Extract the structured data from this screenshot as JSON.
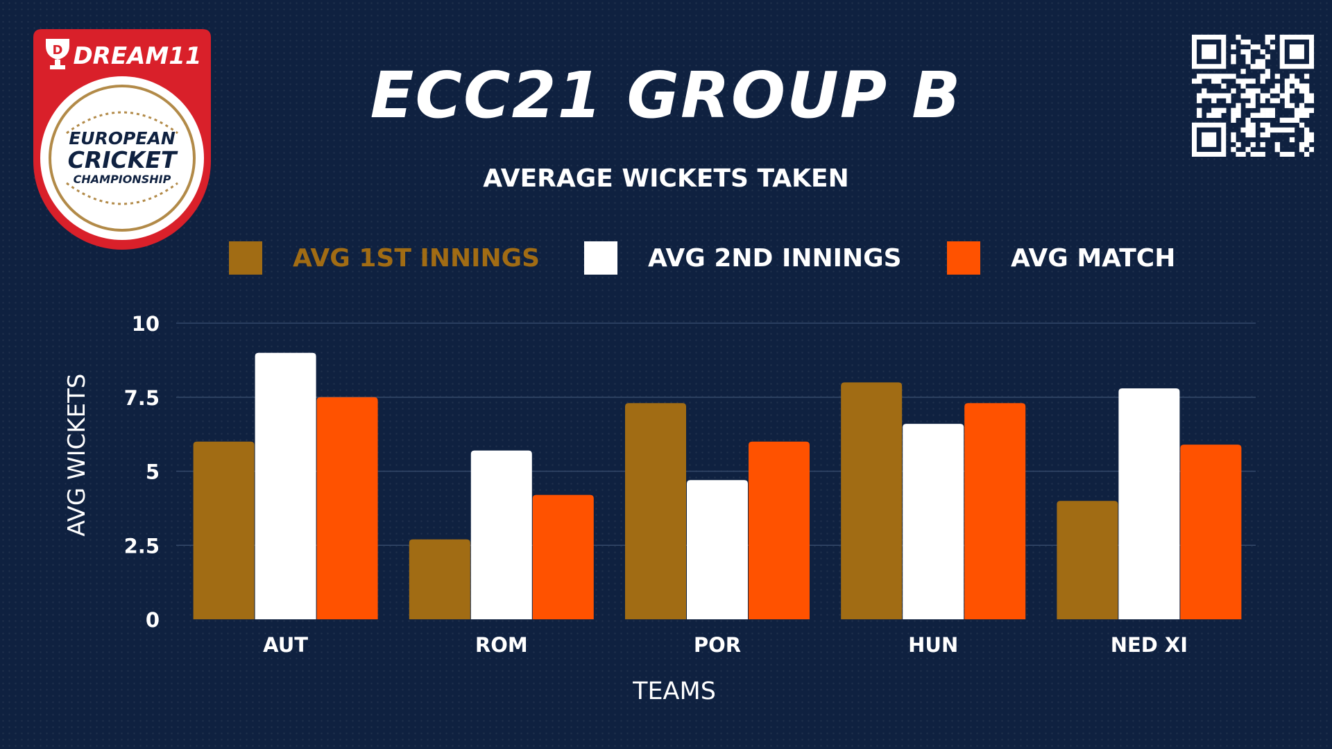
{
  "branding": {
    "sponsor": "DREAM11",
    "event_line1": "EUROPEAN",
    "event_line2": "CRICKET",
    "event_line3": "CHAMPIONSHIP",
    "logo_red": "#d9202a",
    "logo_gold": "#b28a48"
  },
  "header": {
    "title": "ECC21 GROUP B",
    "subtitle": "AVERAGE WICKETS TAKEN"
  },
  "colors": {
    "background": "#0f2140",
    "series_1": "#a16c14",
    "series_2": "#ffffff",
    "series_3": "#ff5200",
    "gridline": "#34496a"
  },
  "chart_data": {
    "type": "bar",
    "title": "AVERAGE WICKETS TAKEN",
    "xlabel": "TEAMS",
    "ylabel": "AVG WICKETS",
    "categories": [
      "AUT",
      "ROM",
      "POR",
      "HUN",
      "NED XI"
    ],
    "series": [
      {
        "name": "AVG 1ST INNINGS",
        "color": "#a16c14",
        "values": [
          6.0,
          2.7,
          7.3,
          8.0,
          4.0
        ]
      },
      {
        "name": "AVG 2ND INNINGS",
        "color": "#ffffff",
        "values": [
          9.0,
          5.7,
          4.7,
          6.6,
          7.8
        ]
      },
      {
        "name": "AVG MATCH",
        "color": "#ff5200",
        "values": [
          7.5,
          4.2,
          6.0,
          7.3,
          5.9
        ]
      }
    ],
    "ylim": [
      0,
      10
    ],
    "yticks": [
      "0",
      "2.5",
      "5",
      "7.5",
      "10"
    ],
    "ytick_values": [
      0,
      2.5,
      5,
      7.5,
      10
    ],
    "grid": true,
    "legend_position": "top"
  }
}
